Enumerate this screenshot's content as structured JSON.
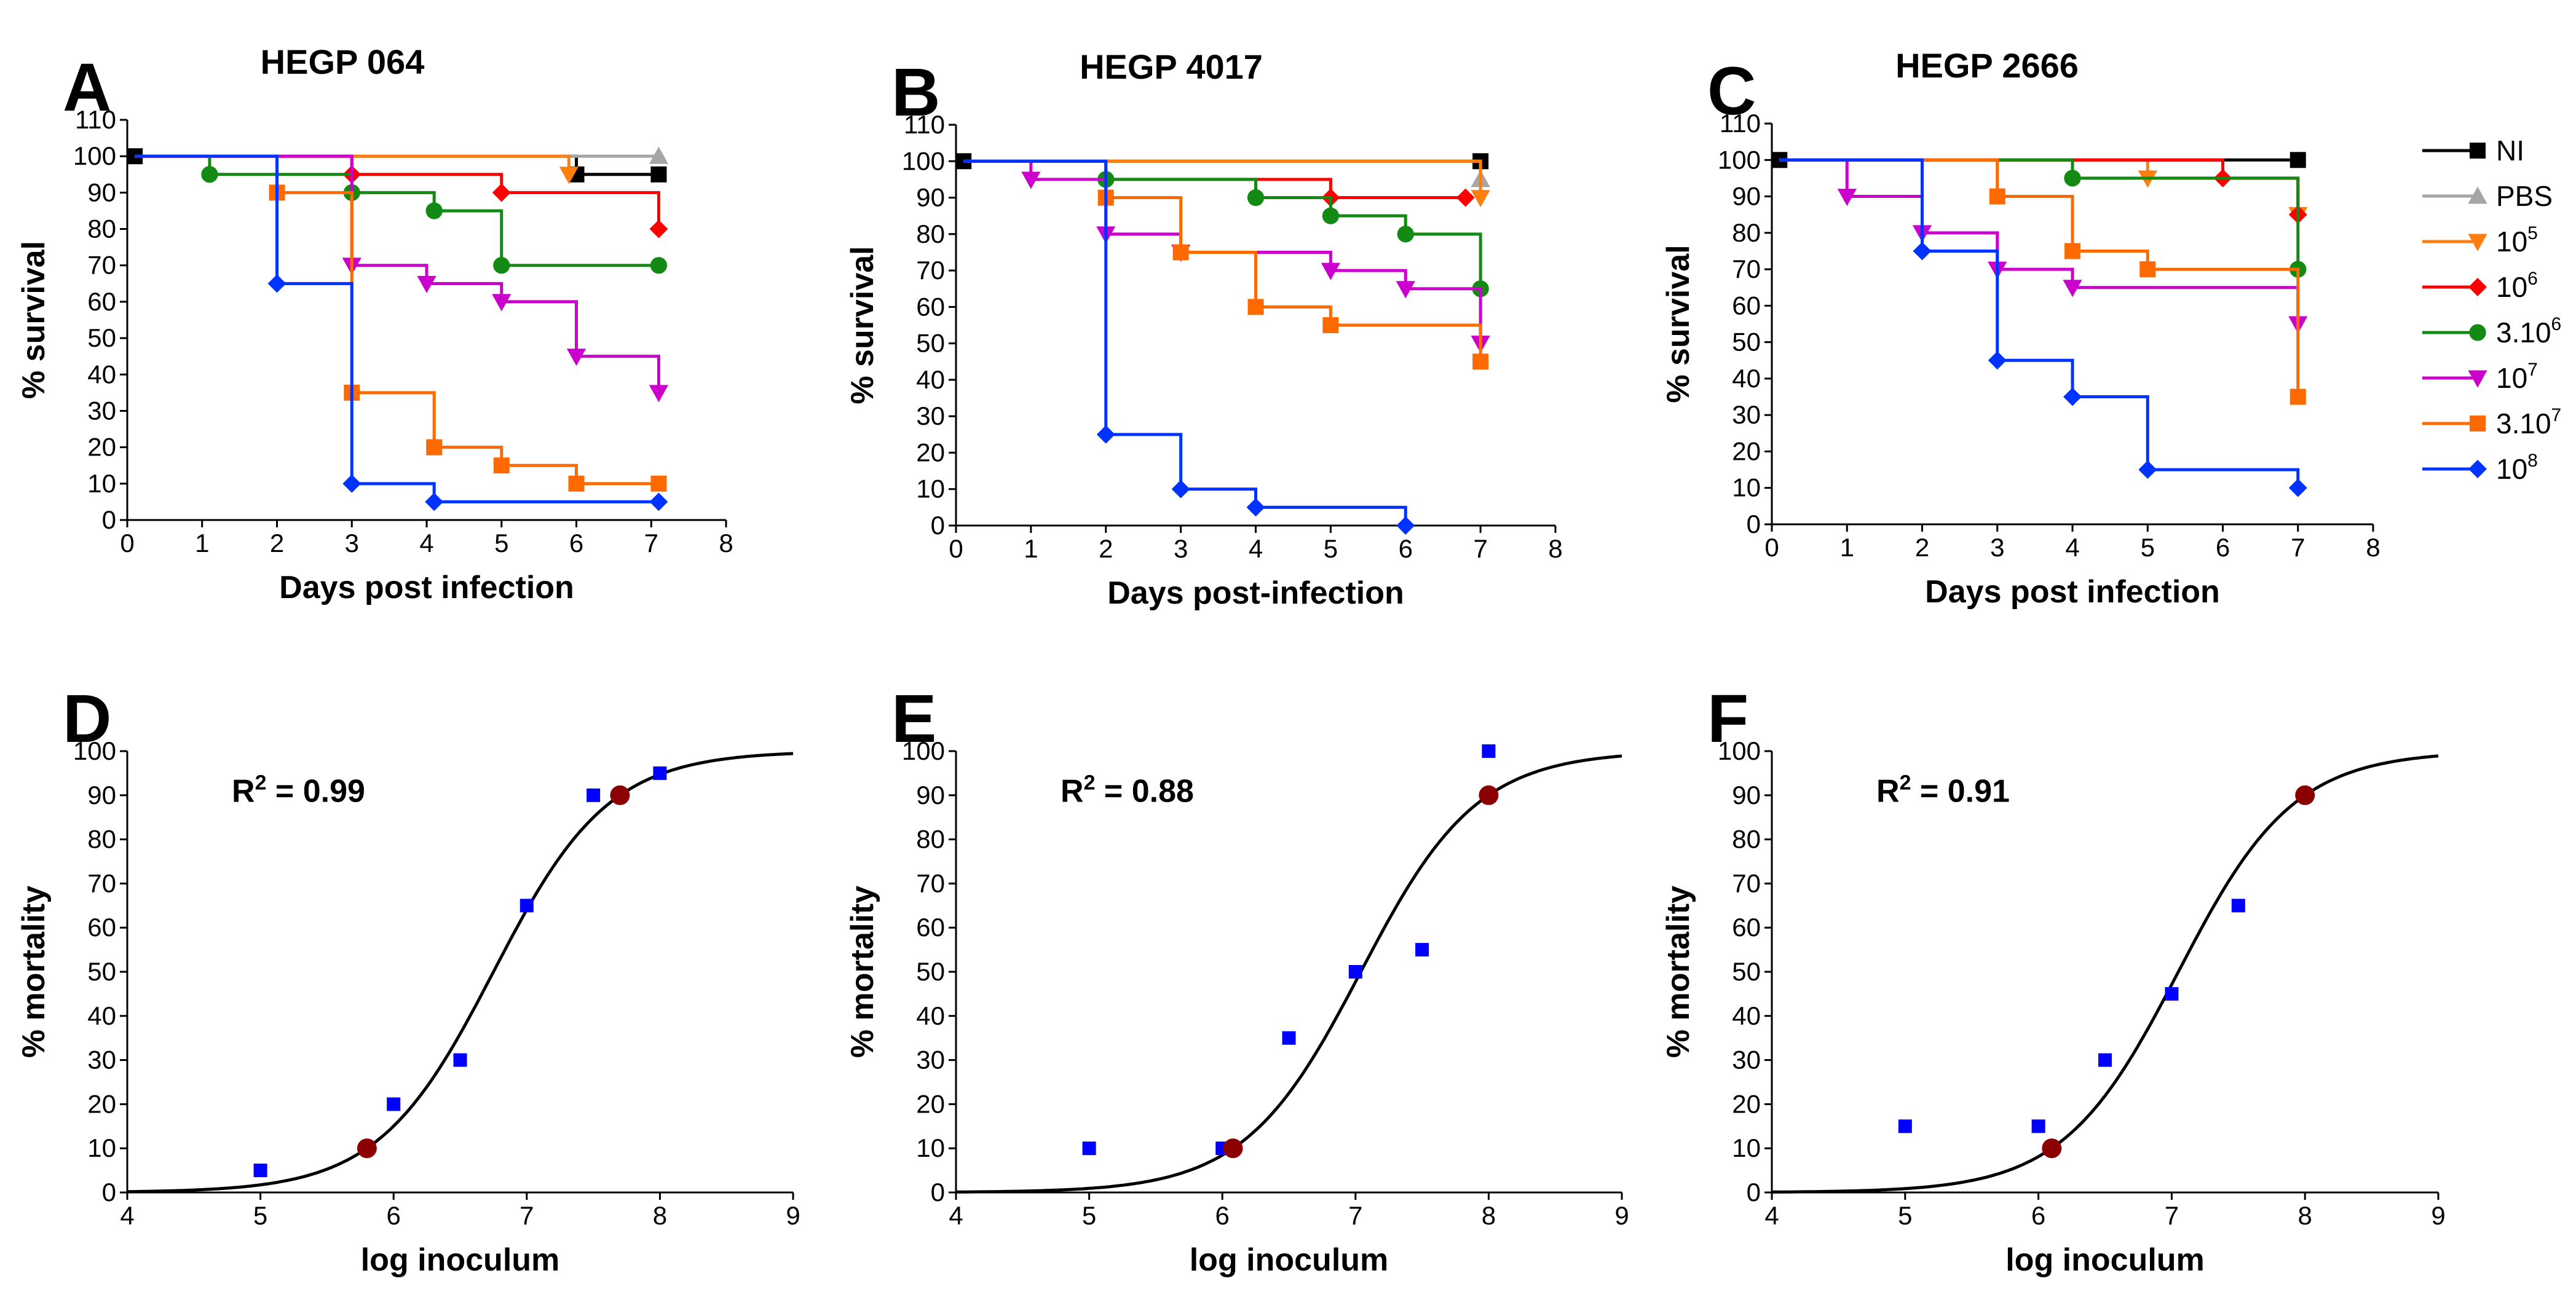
{
  "colors": {
    "NI": "#000000",
    "PBS": "#a6a6a6",
    "1e5": "#ff7f0e",
    "1e6": "#ff0000",
    "3e6": "#138a13",
    "1e7": "#cc00cc",
    "3e7": "#ff6a00",
    "1e8": "#0033ff",
    "fit_curve": "#000000",
    "observed_points": "#0000ff",
    "ld_points": "#8b0000"
  },
  "legend": {
    "entries": [
      {
        "key": "NI",
        "label": "NI",
        "marker": "square",
        "sup": ""
      },
      {
        "key": "PBS",
        "label": "PBS",
        "marker": "triangle-up",
        "sup": ""
      },
      {
        "key": "1e5",
        "label": "10",
        "marker": "triangle-down",
        "sup": "5"
      },
      {
        "key": "1e6",
        "label": "10",
        "marker": "diamond",
        "sup": "6"
      },
      {
        "key": "3e6",
        "label": "3.10",
        "marker": "circle",
        "sup": "6"
      },
      {
        "key": "1e7",
        "label": "10",
        "marker": "triangle-down",
        "sup": "7"
      },
      {
        "key": "3e7",
        "label": "3.10",
        "marker": "square",
        "sup": "7"
      },
      {
        "key": "1e8",
        "label": "10",
        "marker": "diamond",
        "sup": "8"
      }
    ]
  },
  "chart_data": [
    {
      "id": "A",
      "panel_label": "A",
      "title": "HEGP 064",
      "type": "line",
      "xlabel": "Days post infection",
      "ylabel": "% survival",
      "xlim": [
        0,
        8
      ],
      "ylim": [
        0,
        110
      ],
      "xticks": [
        0,
        1,
        2,
        3,
        4,
        5,
        6,
        7,
        8
      ],
      "yticks": [
        0,
        10,
        20,
        30,
        40,
        50,
        60,
        70,
        80,
        90,
        100,
        110
      ],
      "series": [
        {
          "key": "NI",
          "marker": "square",
          "points": [
            [
              0.1,
              100
            ],
            [
              6,
              95
            ],
            [
              7.1,
              95
            ]
          ]
        },
        {
          "key": "PBS",
          "marker": "triangle-up",
          "points": [
            [
              7.1,
              100
            ]
          ]
        },
        {
          "key": "1e5",
          "marker": "triangle-down",
          "points": [
            [
              5.9,
              95
            ]
          ]
        },
        {
          "key": "1e6",
          "marker": "diamond",
          "points": [
            [
              3,
              95
            ],
            [
              5,
              90
            ],
            [
              7.1,
              80
            ]
          ]
        },
        {
          "key": "3e6",
          "marker": "circle",
          "points": [
            [
              1.1,
              95
            ],
            [
              3,
              90
            ],
            [
              4.1,
              85
            ],
            [
              5,
              70
            ],
            [
              7.1,
              70
            ]
          ]
        },
        {
          "key": "1e7",
          "marker": "triangle-down",
          "points": [
            [
              3,
              70
            ],
            [
              4,
              65
            ],
            [
              5,
              60
            ],
            [
              6,
              45
            ],
            [
              7.1,
              35
            ]
          ]
        },
        {
          "key": "3e7",
          "marker": "square",
          "points": [
            [
              2,
              90
            ],
            [
              3,
              35
            ],
            [
              4.1,
              20
            ],
            [
              5,
              15
            ],
            [
              6,
              10
            ],
            [
              7.1,
              10
            ]
          ]
        },
        {
          "key": "1e8",
          "marker": "diamond",
          "points": [
            [
              2,
              65
            ],
            [
              3,
              10
            ],
            [
              4.1,
              5
            ],
            [
              7.1,
              5
            ]
          ]
        }
      ]
    },
    {
      "id": "B",
      "panel_label": "B",
      "title": "HEGP 4017",
      "type": "line",
      "xlabel": "Days post-infection",
      "ylabel": "% survival",
      "xlim": [
        0,
        8
      ],
      "ylim": [
        0,
        110
      ],
      "xticks": [
        0,
        1,
        2,
        3,
        4,
        5,
        6,
        7,
        8
      ],
      "yticks": [
        0,
        10,
        20,
        30,
        40,
        50,
        60,
        70,
        80,
        90,
        100,
        110
      ],
      "series": [
        {
          "key": "NI",
          "marker": "square",
          "points": [
            [
              0.1,
              100
            ],
            [
              7,
              100
            ]
          ]
        },
        {
          "key": "PBS",
          "marker": "triangle-up",
          "points": [
            [
              7,
              95
            ]
          ]
        },
        {
          "key": "1e5",
          "marker": "triangle-down",
          "points": [
            [
              7,
              90
            ]
          ]
        },
        {
          "key": "1e6",
          "marker": "diamond",
          "points": [
            [
              2,
              95
            ],
            [
              5,
              90
            ],
            [
              6.8,
              90
            ]
          ]
        },
        {
          "key": "3e6",
          "marker": "circle",
          "points": [
            [
              2,
              95
            ],
            [
              4,
              90
            ],
            [
              5,
              85
            ],
            [
              6,
              80
            ],
            [
              7,
              65
            ]
          ]
        },
        {
          "key": "1e7",
          "marker": "triangle-down",
          "points": [
            [
              1,
              95
            ],
            [
              2,
              80
            ],
            [
              3,
              75
            ],
            [
              5,
              70
            ],
            [
              6,
              65
            ],
            [
              7,
              50
            ]
          ]
        },
        {
          "key": "3e7",
          "marker": "square",
          "points": [
            [
              2,
              90
            ],
            [
              3,
              75
            ],
            [
              4,
              60
            ],
            [
              5,
              55
            ],
            [
              7,
              45
            ]
          ]
        },
        {
          "key": "1e8",
          "marker": "diamond",
          "points": [
            [
              2,
              25
            ],
            [
              3,
              10
            ],
            [
              4,
              5
            ],
            [
              6,
              0
            ]
          ]
        }
      ]
    },
    {
      "id": "C",
      "panel_label": "C",
      "title": "HEGP 2666",
      "type": "line",
      "xlabel": "Days post infection",
      "ylabel": "% survival",
      "xlim": [
        0,
        8
      ],
      "ylim": [
        0,
        110
      ],
      "xticks": [
        0,
        1,
        2,
        3,
        4,
        5,
        6,
        7,
        8
      ],
      "yticks": [
        0,
        10,
        20,
        30,
        40,
        50,
        60,
        70,
        80,
        90,
        100,
        110
      ],
      "series": [
        {
          "key": "NI",
          "marker": "square",
          "points": [
            [
              0.1,
              100
            ],
            [
              7,
              100
            ]
          ]
        },
        {
          "key": "1e5",
          "marker": "triangle-down",
          "points": [
            [
              5,
              95
            ],
            [
              7,
              85
            ]
          ]
        },
        {
          "key": "1e6",
          "marker": "diamond",
          "points": [
            [
              6,
              95
            ],
            [
              7,
              85
            ]
          ]
        },
        {
          "key": "3e6",
          "marker": "circle",
          "points": [
            [
              4,
              95
            ],
            [
              7,
              70
            ]
          ]
        },
        {
          "key": "1e7",
          "marker": "triangle-down",
          "points": [
            [
              1,
              90
            ],
            [
              2,
              80
            ],
            [
              3,
              70
            ],
            [
              4,
              65
            ],
            [
              7,
              55
            ]
          ]
        },
        {
          "key": "3e7",
          "marker": "square",
          "points": [
            [
              3,
              90
            ],
            [
              4,
              75
            ],
            [
              5,
              70
            ],
            [
              7,
              35
            ]
          ]
        },
        {
          "key": "1e8",
          "marker": "diamond",
          "points": [
            [
              2,
              75
            ],
            [
              3,
              45
            ],
            [
              4,
              35
            ],
            [
              5,
              15
            ],
            [
              7,
              10
            ]
          ]
        }
      ]
    },
    {
      "id": "D",
      "panel_label": "D",
      "type": "scatter",
      "xlabel": "log inoculum",
      "ylabel": "% mortality",
      "xlim": [
        4,
        9
      ],
      "ylim": [
        0,
        100
      ],
      "xticks": [
        4,
        5,
        6,
        7,
        8,
        9
      ],
      "yticks": [
        0,
        10,
        20,
        30,
        40,
        50,
        60,
        70,
        80,
        90,
        100
      ],
      "r2_label": "R",
      "r2_sup": "2",
      "r2_value": " = 0.99",
      "observed": [
        [
          5,
          5
        ],
        [
          6,
          20
        ],
        [
          6.5,
          30
        ],
        [
          7,
          65
        ],
        [
          7.5,
          90
        ],
        [
          8,
          95
        ]
      ],
      "ld_points": [
        [
          5.8,
          10
        ],
        [
          7.7,
          90
        ]
      ],
      "fit": {
        "model": "logistic",
        "x50": 6.75,
        "slope": 2.31
      }
    },
    {
      "id": "E",
      "panel_label": "E",
      "type": "scatter",
      "xlabel": "log inoculum",
      "ylabel": "% mortality",
      "xlim": [
        4,
        9
      ],
      "ylim": [
        0,
        100
      ],
      "xticks": [
        4,
        5,
        6,
        7,
        8,
        9
      ],
      "yticks": [
        0,
        10,
        20,
        30,
        40,
        50,
        60,
        70,
        80,
        90,
        100
      ],
      "r2_label": "R",
      "r2_sup": "2",
      "r2_value": " = 0.88",
      "observed": [
        [
          5,
          10
        ],
        [
          6,
          10
        ],
        [
          6.5,
          35
        ],
        [
          7,
          50
        ],
        [
          7.5,
          55
        ],
        [
          8,
          100
        ]
      ],
      "ld_points": [
        [
          6.08,
          10
        ],
        [
          8,
          90
        ]
      ],
      "fit": {
        "model": "logistic",
        "x50": 7.04,
        "slope": 2.29
      }
    },
    {
      "id": "F",
      "panel_label": "F",
      "type": "scatter",
      "xlabel": "log inoculum",
      "ylabel": "% mortality",
      "xlim": [
        4,
        9
      ],
      "ylim": [
        0,
        100
      ],
      "xticks": [
        4,
        5,
        6,
        7,
        8,
        9
      ],
      "yticks": [
        0,
        10,
        20,
        30,
        40,
        50,
        60,
        70,
        80,
        90,
        100
      ],
      "r2_label": "R",
      "r2_sup": "2",
      "r2_value": " = 0.91",
      "observed": [
        [
          5,
          15
        ],
        [
          6,
          15
        ],
        [
          6.5,
          30
        ],
        [
          7,
          45
        ],
        [
          7.5,
          65
        ],
        [
          8,
          90
        ]
      ],
      "ld_points": [
        [
          6.1,
          10
        ],
        [
          8,
          90
        ]
      ],
      "fit": {
        "model": "logistic",
        "x50": 7.05,
        "slope": 2.31
      }
    }
  ]
}
